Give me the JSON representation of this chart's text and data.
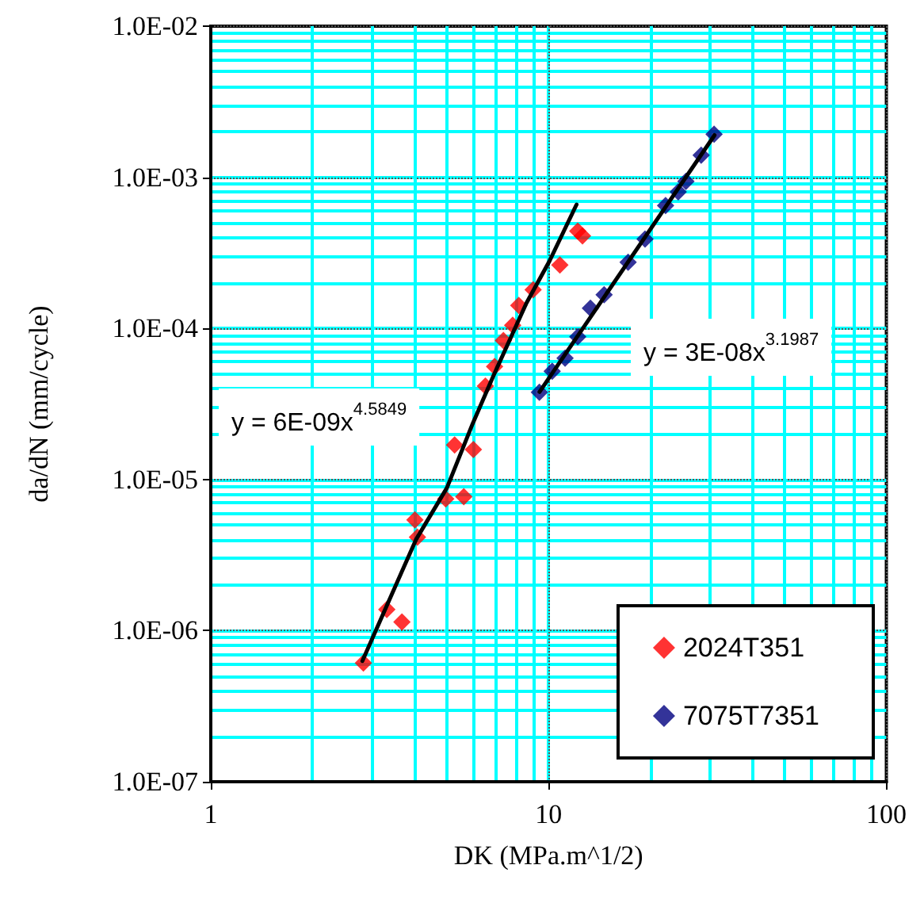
{
  "chart_data": {
    "type": "scatter",
    "xlabel": "DK (MPa.m^1/2)",
    "ylabel": "da/dN (mm/cycle)",
    "log": "xy",
    "xlim": [
      1,
      100
    ],
    "ylim": [
      1e-07,
      0.01
    ],
    "xticks": [
      1,
      10,
      100
    ],
    "yticks": [
      {
        "value": 1e-07,
        "label": "1.0E-07"
      },
      {
        "value": 1e-06,
        "label": "1.0E-06"
      },
      {
        "value": 1e-05,
        "label": "1.0E-05"
      },
      {
        "value": 0.0001,
        "label": "1.0E-04"
      },
      {
        "value": 0.001,
        "label": "1.0E-03"
      },
      {
        "value": 0.01,
        "label": "1.0E-02"
      }
    ],
    "grid": true,
    "legend": "bottom right",
    "marker": "diamond",
    "annotations": [
      "y = 6E-09x$^{4.5849}$",
      "y = 3E-08x$^{3.1987}$"
    ],
    "series": [
      {
        "name": "2024T351",
        "color": "#ff0000",
        "x": [
          2.83,
          3.32,
          3.68,
          4.02,
          4.09,
          4.96,
          5.61,
          5.27,
          5.99,
          6.5,
          6.92,
          7.35,
          7.83,
          8.16,
          9.0,
          10.8,
          12.2,
          12.6
        ],
        "values": [
          6.1e-07,
          1.38e-06,
          1.14e-06,
          5.4e-06,
          4.15e-06,
          7.45e-06,
          7.7e-06,
          1.69e-05,
          1.58e-05,
          4.15e-05,
          5.6e-05,
          8.3e-05,
          0.000105,
          0.000142,
          0.00018,
          0.000263,
          0.00044,
          0.00041
        ]
      },
      {
        "name": "7075T7351",
        "color": "#000080",
        "x": [
          9.39,
          10.25,
          11.19,
          12.2,
          13.3,
          14.6,
          17.2,
          19.3,
          22.2,
          24.2,
          25.5,
          28.3,
          30.9
        ],
        "values": [
          3.78e-05,
          5.2e-05,
          6.36e-05,
          8.8e-05,
          0.000136,
          0.000167,
          0.000274,
          0.00039,
          0.00065,
          0.0008,
          0.00094,
          0.0014,
          0.00193
        ]
      },
      {
        "type": "line",
        "color": "#000000",
        "marker": "none",
        "x": [
          2.81,
          4.05,
          5.0,
          5.96,
          6.85,
          8.6,
          10.07,
          12.1
        ],
        "values": [
          6.3e-07,
          4e-06,
          8.8e-06,
          2.34e-05,
          4.8e-05,
          0.000147,
          0.00028,
          0.00066
        ]
      },
      {
        "type": "line",
        "color": "#000000",
        "marker": "none",
        "x": [
          9.4,
          31
        ],
        "values": [
          3.8e-05,
          0.0019
        ]
      }
    ]
  }
}
